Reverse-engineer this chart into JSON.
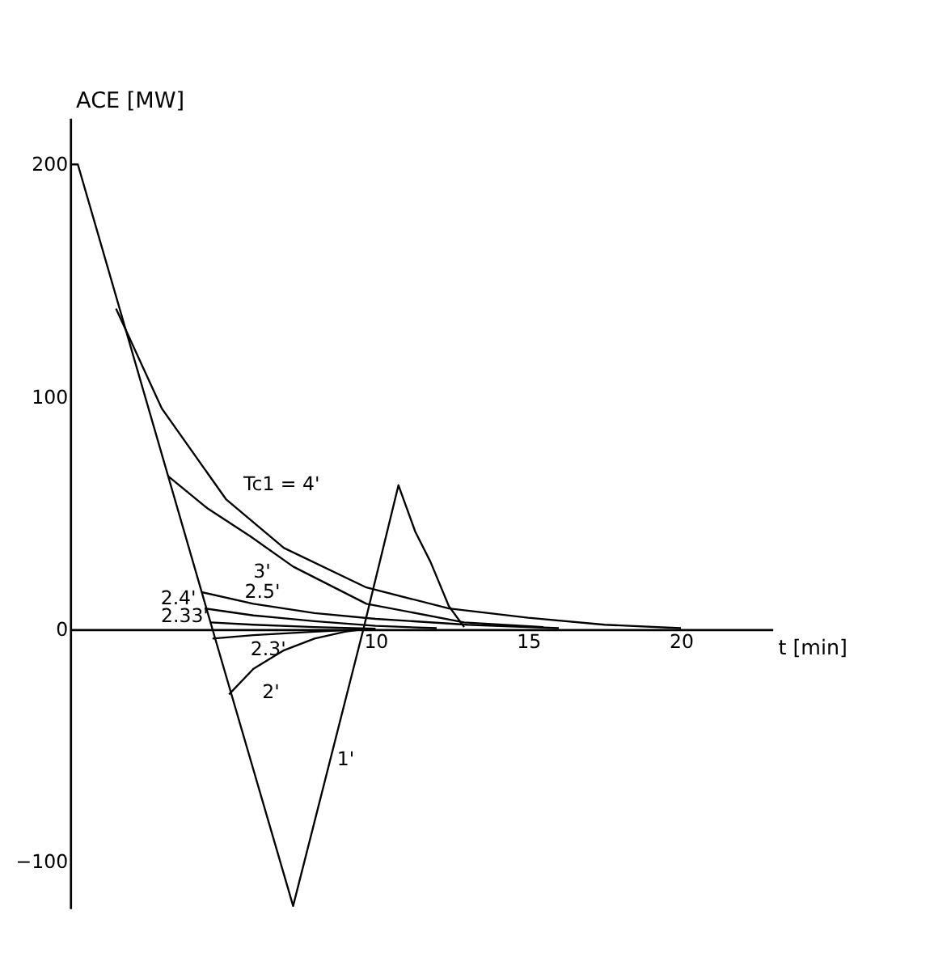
{
  "chart_data": {
    "type": "line",
    "xlabel": "t [min]",
    "ylabel": "ACE [MW]",
    "xlim": [
      0,
      23
    ],
    "ylim": [
      -120,
      220
    ],
    "xticks": [
      10,
      15,
      20
    ],
    "yticks": [
      -100,
      0,
      100,
      200
    ],
    "grid": false,
    "marker": "none",
    "line_style": "solid",
    "series": [
      {
        "name": "1'",
        "color": "#000000",
        "x": [
          0,
          0.25,
          4.66,
          7.3,
          9.6,
          10.75,
          11.3,
          11.8,
          12.4,
          12.9
        ],
        "values": [
          200,
          200,
          0,
          -119,
          0,
          62,
          42,
          29,
          10,
          1
        ]
      },
      {
        "name": "Tc1 = 4'",
        "color": "#000000",
        "x": [
          1.5,
          3,
          5.1,
          7,
          9.7,
          12.4,
          15,
          17.5,
          20
        ],
        "values": [
          138,
          95,
          56,
          35,
          18,
          9,
          5,
          2,
          0.5
        ]
      },
      {
        "name": "3'",
        "color": "#000000",
        "x": [
          3.2,
          4.5,
          5.9,
          7.3,
          9.7,
          12.9,
          15.5
        ],
        "values": [
          66,
          52,
          40,
          27,
          11,
          3,
          1
        ]
      },
      {
        "name": "2.5'",
        "color": "#000000",
        "x": [
          4.3,
          6,
          8,
          10,
          13,
          16
        ],
        "values": [
          16,
          11,
          7,
          4.5,
          2,
          0.5
        ]
      },
      {
        "name": "2.4'",
        "color": "#000000",
        "x": [
          4.4,
          6,
          8,
          10,
          12
        ],
        "values": [
          9,
          6,
          3.5,
          1.5,
          0.5
        ]
      },
      {
        "name": "2.33'",
        "color": "#000000",
        "x": [
          4.6,
          6,
          8,
          10
        ],
        "values": [
          3,
          2,
          1,
          0.3
        ]
      },
      {
        "name": "2.3'",
        "color": "#000000",
        "x": [
          4.66,
          6,
          8,
          9.5
        ],
        "values": [
          -4,
          -2.5,
          -1,
          0
        ]
      },
      {
        "name": "2'",
        "color": "#000000",
        "x": [
          5.2,
          6,
          7,
          8,
          9,
          9.6
        ],
        "values": [
          -28,
          -17,
          -9,
          -4,
          -1,
          0
        ]
      }
    ]
  }
}
